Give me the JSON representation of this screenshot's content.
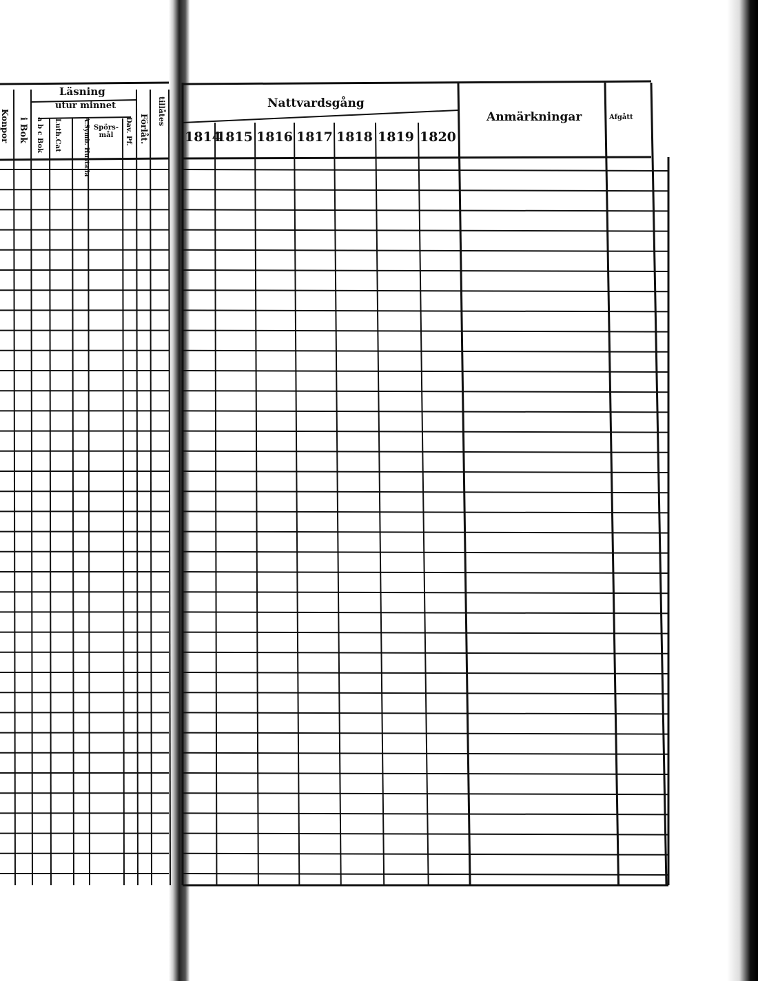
{
  "left_page": {
    "group_title": "Läsning",
    "subgroup_title": "utur minnet",
    "columns": [
      "Konpor",
      "i Bok",
      "a b c Bok",
      "Luth.Cat",
      "A.Symb. Hustafla",
      "Spörs-mål",
      "Dav. Pf.",
      "Förlåt.",
      "tillåtes"
    ]
  },
  "right_page": {
    "group_title": "Nattvardsgång",
    "years": [
      "1814",
      "1815",
      "1816",
      "1817",
      "1818",
      "1819",
      "1820"
    ],
    "remarks_header": "Anmärkningar",
    "departed_header": "Afgått"
  }
}
